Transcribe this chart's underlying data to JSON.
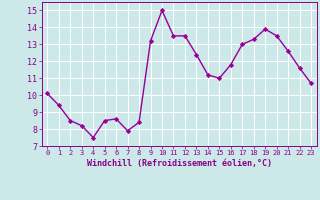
{
  "x": [
    0,
    1,
    2,
    3,
    4,
    5,
    6,
    7,
    8,
    9,
    10,
    11,
    12,
    13,
    14,
    15,
    16,
    17,
    18,
    19,
    20,
    21,
    22,
    23
  ],
  "y": [
    10.1,
    9.4,
    8.5,
    8.2,
    7.5,
    8.5,
    8.6,
    7.9,
    8.4,
    13.2,
    15.0,
    13.5,
    13.5,
    12.4,
    11.2,
    11.0,
    11.8,
    13.0,
    13.3,
    13.9,
    13.5,
    12.6,
    11.6,
    10.7
  ],
  "line_color": "#990099",
  "marker": "D",
  "marker_size": 2.2,
  "linewidth": 1.0,
  "xlabel": "Windchill (Refroidissement éolien,°C)",
  "xlim": [
    -0.5,
    23.5
  ],
  "ylim": [
    7,
    15.5
  ],
  "yticks": [
    7,
    8,
    9,
    10,
    11,
    12,
    13,
    14,
    15
  ],
  "xticks": [
    0,
    1,
    2,
    3,
    4,
    5,
    6,
    7,
    8,
    9,
    10,
    11,
    12,
    13,
    14,
    15,
    16,
    17,
    18,
    19,
    20,
    21,
    22,
    23
  ],
  "bg_color": "#cce8e8",
  "grid_color": "#ffffff",
  "tick_color": "#880088",
  "label_color": "#880088"
}
